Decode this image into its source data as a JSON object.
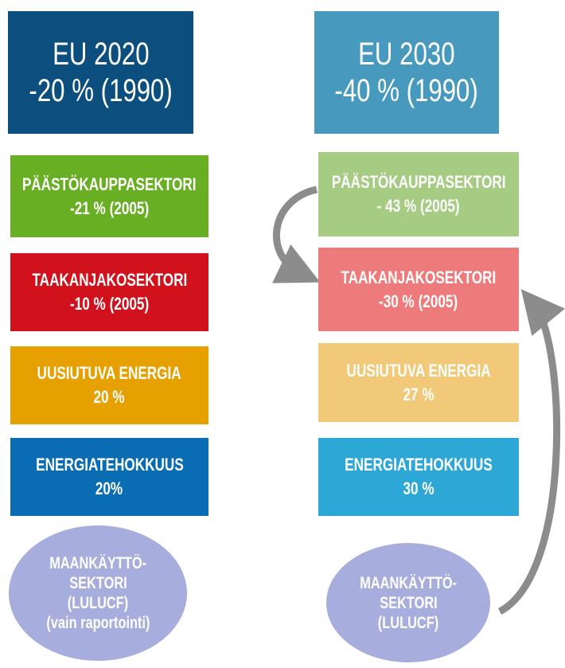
{
  "columns": [
    {
      "header": [
        "EU 2020",
        "-20 % (1990)"
      ],
      "items": [
        [
          "PÄÄSTÖKAUPPASEKTORI",
          "-21 % (2005)"
        ],
        [
          "TAAKANJAKOSEKTORI",
          "-10 % (2005)"
        ],
        [
          "UUSIUTUVA ENERGIA",
          "20 %"
        ],
        [
          "ENERGIATEHOKKUUS",
          "20%"
        ]
      ],
      "ellipse": [
        "MAANKÄYTTÖ-",
        "SEKTORI",
        "(LULUCF)",
        "(vain raportointi)"
      ]
    },
    {
      "header": [
        "EU 2030",
        "-40 % (1990)"
      ],
      "items": [
        [
          "PÄÄSTÖKAUPPASEKTORI",
          "- 43 % (2005)"
        ],
        [
          "TAAKANJAKOSEKTORI",
          "-30 % (2005)"
        ],
        [
          "UUSIUTUVA ENERGIA",
          "27 %"
        ],
        [
          "ENERGIATEHOKKUUS",
          "30 %"
        ]
      ],
      "ellipse": [
        "MAANKÄYTTÖ-",
        "SEKTORI",
        "(LULUCF)"
      ]
    }
  ]
}
